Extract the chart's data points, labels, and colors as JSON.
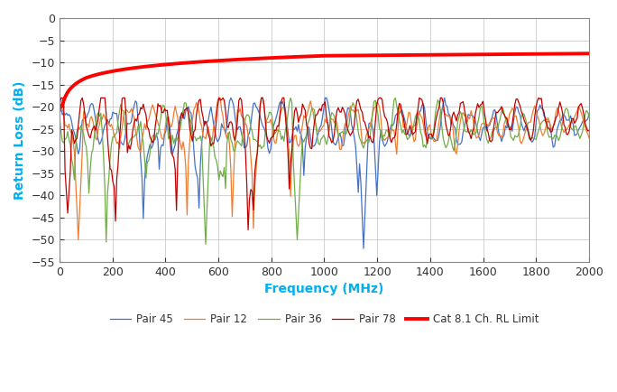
{
  "title": "",
  "xlabel": "Frequency (MHz)",
  "ylabel": "Return Loss (dB)",
  "xlabel_color": "#00b0f0",
  "ylabel_color": "#00b0f0",
  "xlim": [
    0,
    2000
  ],
  "ylim": [
    -55,
    0
  ],
  "yticks": [
    0,
    -5,
    -10,
    -15,
    -20,
    -25,
    -30,
    -35,
    -40,
    -45,
    -50,
    -55
  ],
  "xticks": [
    0,
    200,
    400,
    600,
    800,
    1000,
    1200,
    1400,
    1600,
    1800,
    2000
  ],
  "colors": {
    "pair45": "#4472c4",
    "pair12": "#ed7d31",
    "pair36": "#70ad47",
    "pair78": "#c00000",
    "limit": "#ff0000"
  },
  "legend_labels": [
    "Pair 45",
    "Pair 12",
    "Pair 36",
    "Pair 78",
    "Cat 8.1 Ch. RL Limit"
  ],
  "background_color": "#ffffff",
  "grid_color": "#c0c0c0"
}
